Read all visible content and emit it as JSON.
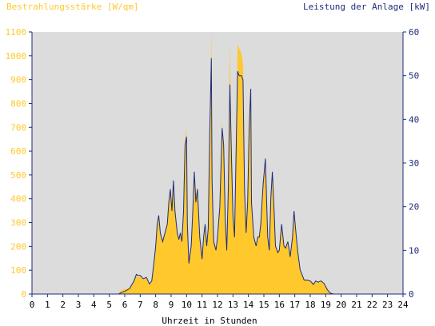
{
  "chart_data": {
    "type": "area",
    "left_axis_label": "Bestrahlungsstärke [W/qm]",
    "right_axis_label": "Leistung der Anlage [kW]",
    "xlabel": "Uhrzeit in Stunden",
    "xlim": [
      0,
      24
    ],
    "ylim_left": [
      0,
      1100
    ],
    "ylim_right": [
      0,
      60
    ],
    "x_ticks": [
      "0",
      "1",
      "2",
      "3",
      "4",
      "5",
      "6",
      "7",
      "8",
      "9",
      "10",
      "11",
      "12",
      "13",
      "14",
      "15",
      "16",
      "17",
      "18",
      "19",
      "20",
      "21",
      "22",
      "23",
      "24"
    ],
    "y_ticks_left": [
      "0",
      "100",
      "200",
      "300",
      "400",
      "500",
      "600",
      "700",
      "800",
      "900",
      "1000",
      "1100"
    ],
    "y_ticks_right": [
      "0",
      "10",
      "20",
      "30",
      "40",
      "50",
      "60"
    ],
    "grid": false,
    "colors": {
      "plot_background": "#DCDCDC",
      "irradiance_fill": "#FFC82D",
      "power_line": "#1E2D78",
      "axis": "#1E2D78"
    },
    "series": [
      {
        "axis": "left",
        "style": "filled-area",
        "points": [
          [
            0,
            0
          ],
          [
            5.6,
            0
          ],
          [
            5.75,
            15
          ],
          [
            6.0,
            20
          ],
          [
            6.3,
            25
          ],
          [
            6.6,
            55
          ],
          [
            6.75,
            80
          ],
          [
            6.9,
            70
          ],
          [
            7.0,
            75
          ],
          [
            7.2,
            60
          ],
          [
            7.4,
            70
          ],
          [
            7.6,
            40
          ],
          [
            7.75,
            55
          ],
          [
            7.9,
            130
          ],
          [
            8.0,
            200
          ],
          [
            8.1,
            290
          ],
          [
            8.2,
            320
          ],
          [
            8.3,
            260
          ],
          [
            8.45,
            220
          ],
          [
            8.6,
            260
          ],
          [
            8.75,
            300
          ],
          [
            8.85,
            380
          ],
          [
            8.95,
            440
          ],
          [
            9.05,
            350
          ],
          [
            9.15,
            480
          ],
          [
            9.25,
            350
          ],
          [
            9.4,
            250
          ],
          [
            9.5,
            230
          ],
          [
            9.6,
            260
          ],
          [
            9.7,
            220
          ],
          [
            9.8,
            350
          ],
          [
            9.9,
            640
          ],
          [
            10.0,
            700
          ],
          [
            10.05,
            300
          ],
          [
            10.15,
            130
          ],
          [
            10.3,
            200
          ],
          [
            10.4,
            360
          ],
          [
            10.5,
            520
          ],
          [
            10.6,
            400
          ],
          [
            10.7,
            450
          ],
          [
            10.85,
            250
          ],
          [
            11.0,
            150
          ],
          [
            11.1,
            240
          ],
          [
            11.2,
            290
          ],
          [
            11.3,
            200
          ],
          [
            11.4,
            280
          ],
          [
            11.5,
            700
          ],
          [
            11.6,
            1100
          ],
          [
            11.65,
            500
          ],
          [
            11.75,
            230
          ],
          [
            11.9,
            190
          ],
          [
            12.0,
            240
          ],
          [
            12.15,
            380
          ],
          [
            12.3,
            720
          ],
          [
            12.4,
            640
          ],
          [
            12.5,
            330
          ],
          [
            12.6,
            200
          ],
          [
            12.7,
            450
          ],
          [
            12.8,
            1050
          ],
          [
            12.9,
            600
          ],
          [
            13.0,
            350
          ],
          [
            13.1,
            250
          ],
          [
            13.2,
            600
          ],
          [
            13.3,
            1050
          ],
          [
            13.4,
            1030
          ],
          [
            13.55,
            1010
          ],
          [
            13.65,
            960
          ],
          [
            13.75,
            450
          ],
          [
            13.85,
            260
          ],
          [
            13.95,
            400
          ],
          [
            14.05,
            720
          ],
          [
            14.15,
            870
          ],
          [
            14.2,
            400
          ],
          [
            14.35,
            240
          ],
          [
            14.5,
            210
          ],
          [
            14.6,
            250
          ],
          [
            14.7,
            240
          ],
          [
            14.8,
            300
          ],
          [
            14.95,
            460
          ],
          [
            15.1,
            530
          ],
          [
            15.25,
            250
          ],
          [
            15.35,
            180
          ],
          [
            15.45,
            420
          ],
          [
            15.55,
            510
          ],
          [
            15.65,
            380
          ],
          [
            15.75,
            210
          ],
          [
            15.9,
            180
          ],
          [
            16.0,
            190
          ],
          [
            16.15,
            300
          ],
          [
            16.3,
            200
          ],
          [
            16.4,
            195
          ],
          [
            16.55,
            220
          ],
          [
            16.7,
            160
          ],
          [
            16.85,
            250
          ],
          [
            16.95,
            320
          ],
          [
            17.05,
            280
          ],
          [
            17.2,
            180
          ],
          [
            17.35,
            100
          ],
          [
            17.5,
            80
          ],
          [
            17.6,
            60
          ],
          [
            17.8,
            60
          ],
          [
            18.0,
            55
          ],
          [
            18.2,
            40
          ],
          [
            18.35,
            55
          ],
          [
            18.5,
            50
          ],
          [
            18.7,
            55
          ],
          [
            18.9,
            45
          ],
          [
            19.1,
            20
          ],
          [
            19.3,
            5
          ],
          [
            19.5,
            0
          ],
          [
            24,
            0
          ]
        ]
      },
      {
        "axis": "right",
        "style": "line",
        "points": [
          [
            0,
            0
          ],
          [
            5.6,
            0
          ],
          [
            5.75,
            0.3
          ],
          [
            6.0,
            0.6
          ],
          [
            6.3,
            1.2
          ],
          [
            6.6,
            3.0
          ],
          [
            6.75,
            4.5
          ],
          [
            6.9,
            4.2
          ],
          [
            7.0,
            4.3
          ],
          [
            7.2,
            3.5
          ],
          [
            7.4,
            3.8
          ],
          [
            7.6,
            2.3
          ],
          [
            7.75,
            3.0
          ],
          [
            7.9,
            7.5
          ],
          [
            8.0,
            11
          ],
          [
            8.1,
            16
          ],
          [
            8.2,
            18
          ],
          [
            8.3,
            14
          ],
          [
            8.45,
            12
          ],
          [
            8.6,
            14
          ],
          [
            8.75,
            16
          ],
          [
            8.85,
            21
          ],
          [
            8.95,
            24
          ],
          [
            9.05,
            19
          ],
          [
            9.15,
            26
          ],
          [
            9.25,
            19
          ],
          [
            9.4,
            14
          ],
          [
            9.5,
            12.5
          ],
          [
            9.6,
            14
          ],
          [
            9.7,
            12
          ],
          [
            9.8,
            19
          ],
          [
            9.9,
            34
          ],
          [
            10.0,
            36
          ],
          [
            10.05,
            16
          ],
          [
            10.15,
            7
          ],
          [
            10.3,
            11
          ],
          [
            10.4,
            19
          ],
          [
            10.5,
            28
          ],
          [
            10.6,
            21
          ],
          [
            10.7,
            24
          ],
          [
            10.85,
            13
          ],
          [
            11.0,
            8
          ],
          [
            11.1,
            13
          ],
          [
            11.2,
            16
          ],
          [
            11.3,
            11
          ],
          [
            11.4,
            15
          ],
          [
            11.5,
            37
          ],
          [
            11.6,
            54
          ],
          [
            11.65,
            26
          ],
          [
            11.75,
            12
          ],
          [
            11.9,
            10
          ],
          [
            12.0,
            13
          ],
          [
            12.15,
            20
          ],
          [
            12.3,
            38
          ],
          [
            12.4,
            34
          ],
          [
            12.5,
            17
          ],
          [
            12.6,
            10
          ],
          [
            12.7,
            24
          ],
          [
            12.8,
            48
          ],
          [
            12.9,
            32
          ],
          [
            13.0,
            18
          ],
          [
            13.1,
            13
          ],
          [
            13.2,
            32
          ],
          [
            13.3,
            51
          ],
          [
            13.4,
            50
          ],
          [
            13.55,
            50
          ],
          [
            13.65,
            49
          ],
          [
            13.75,
            24
          ],
          [
            13.85,
            14
          ],
          [
            13.95,
            21
          ],
          [
            14.05,
            38
          ],
          [
            14.15,
            47
          ],
          [
            14.2,
            21
          ],
          [
            14.35,
            13
          ],
          [
            14.5,
            11
          ],
          [
            14.6,
            13
          ],
          [
            14.7,
            13
          ],
          [
            14.8,
            16
          ],
          [
            14.95,
            25
          ],
          [
            15.1,
            31
          ],
          [
            15.25,
            13
          ],
          [
            15.35,
            10
          ],
          [
            15.45,
            22
          ],
          [
            15.55,
            28
          ],
          [
            15.65,
            20
          ],
          [
            15.75,
            11
          ],
          [
            15.9,
            9.5
          ],
          [
            16.0,
            10
          ],
          [
            16.15,
            16
          ],
          [
            16.3,
            11
          ],
          [
            16.4,
            10.5
          ],
          [
            16.55,
            12
          ],
          [
            16.7,
            8.5
          ],
          [
            16.85,
            13
          ],
          [
            16.95,
            19
          ],
          [
            17.05,
            15
          ],
          [
            17.2,
            9.5
          ],
          [
            17.35,
            5.5
          ],
          [
            17.5,
            4.2
          ],
          [
            17.6,
            3.2
          ],
          [
            17.8,
            3.2
          ],
          [
            18.0,
            3.0
          ],
          [
            18.2,
            2.2
          ],
          [
            18.35,
            3.0
          ],
          [
            18.5,
            2.7
          ],
          [
            18.7,
            3.0
          ],
          [
            18.9,
            2.4
          ],
          [
            19.1,
            1.0
          ],
          [
            19.3,
            0.2
          ],
          [
            19.5,
            0
          ],
          [
            24,
            0
          ]
        ]
      }
    ]
  }
}
